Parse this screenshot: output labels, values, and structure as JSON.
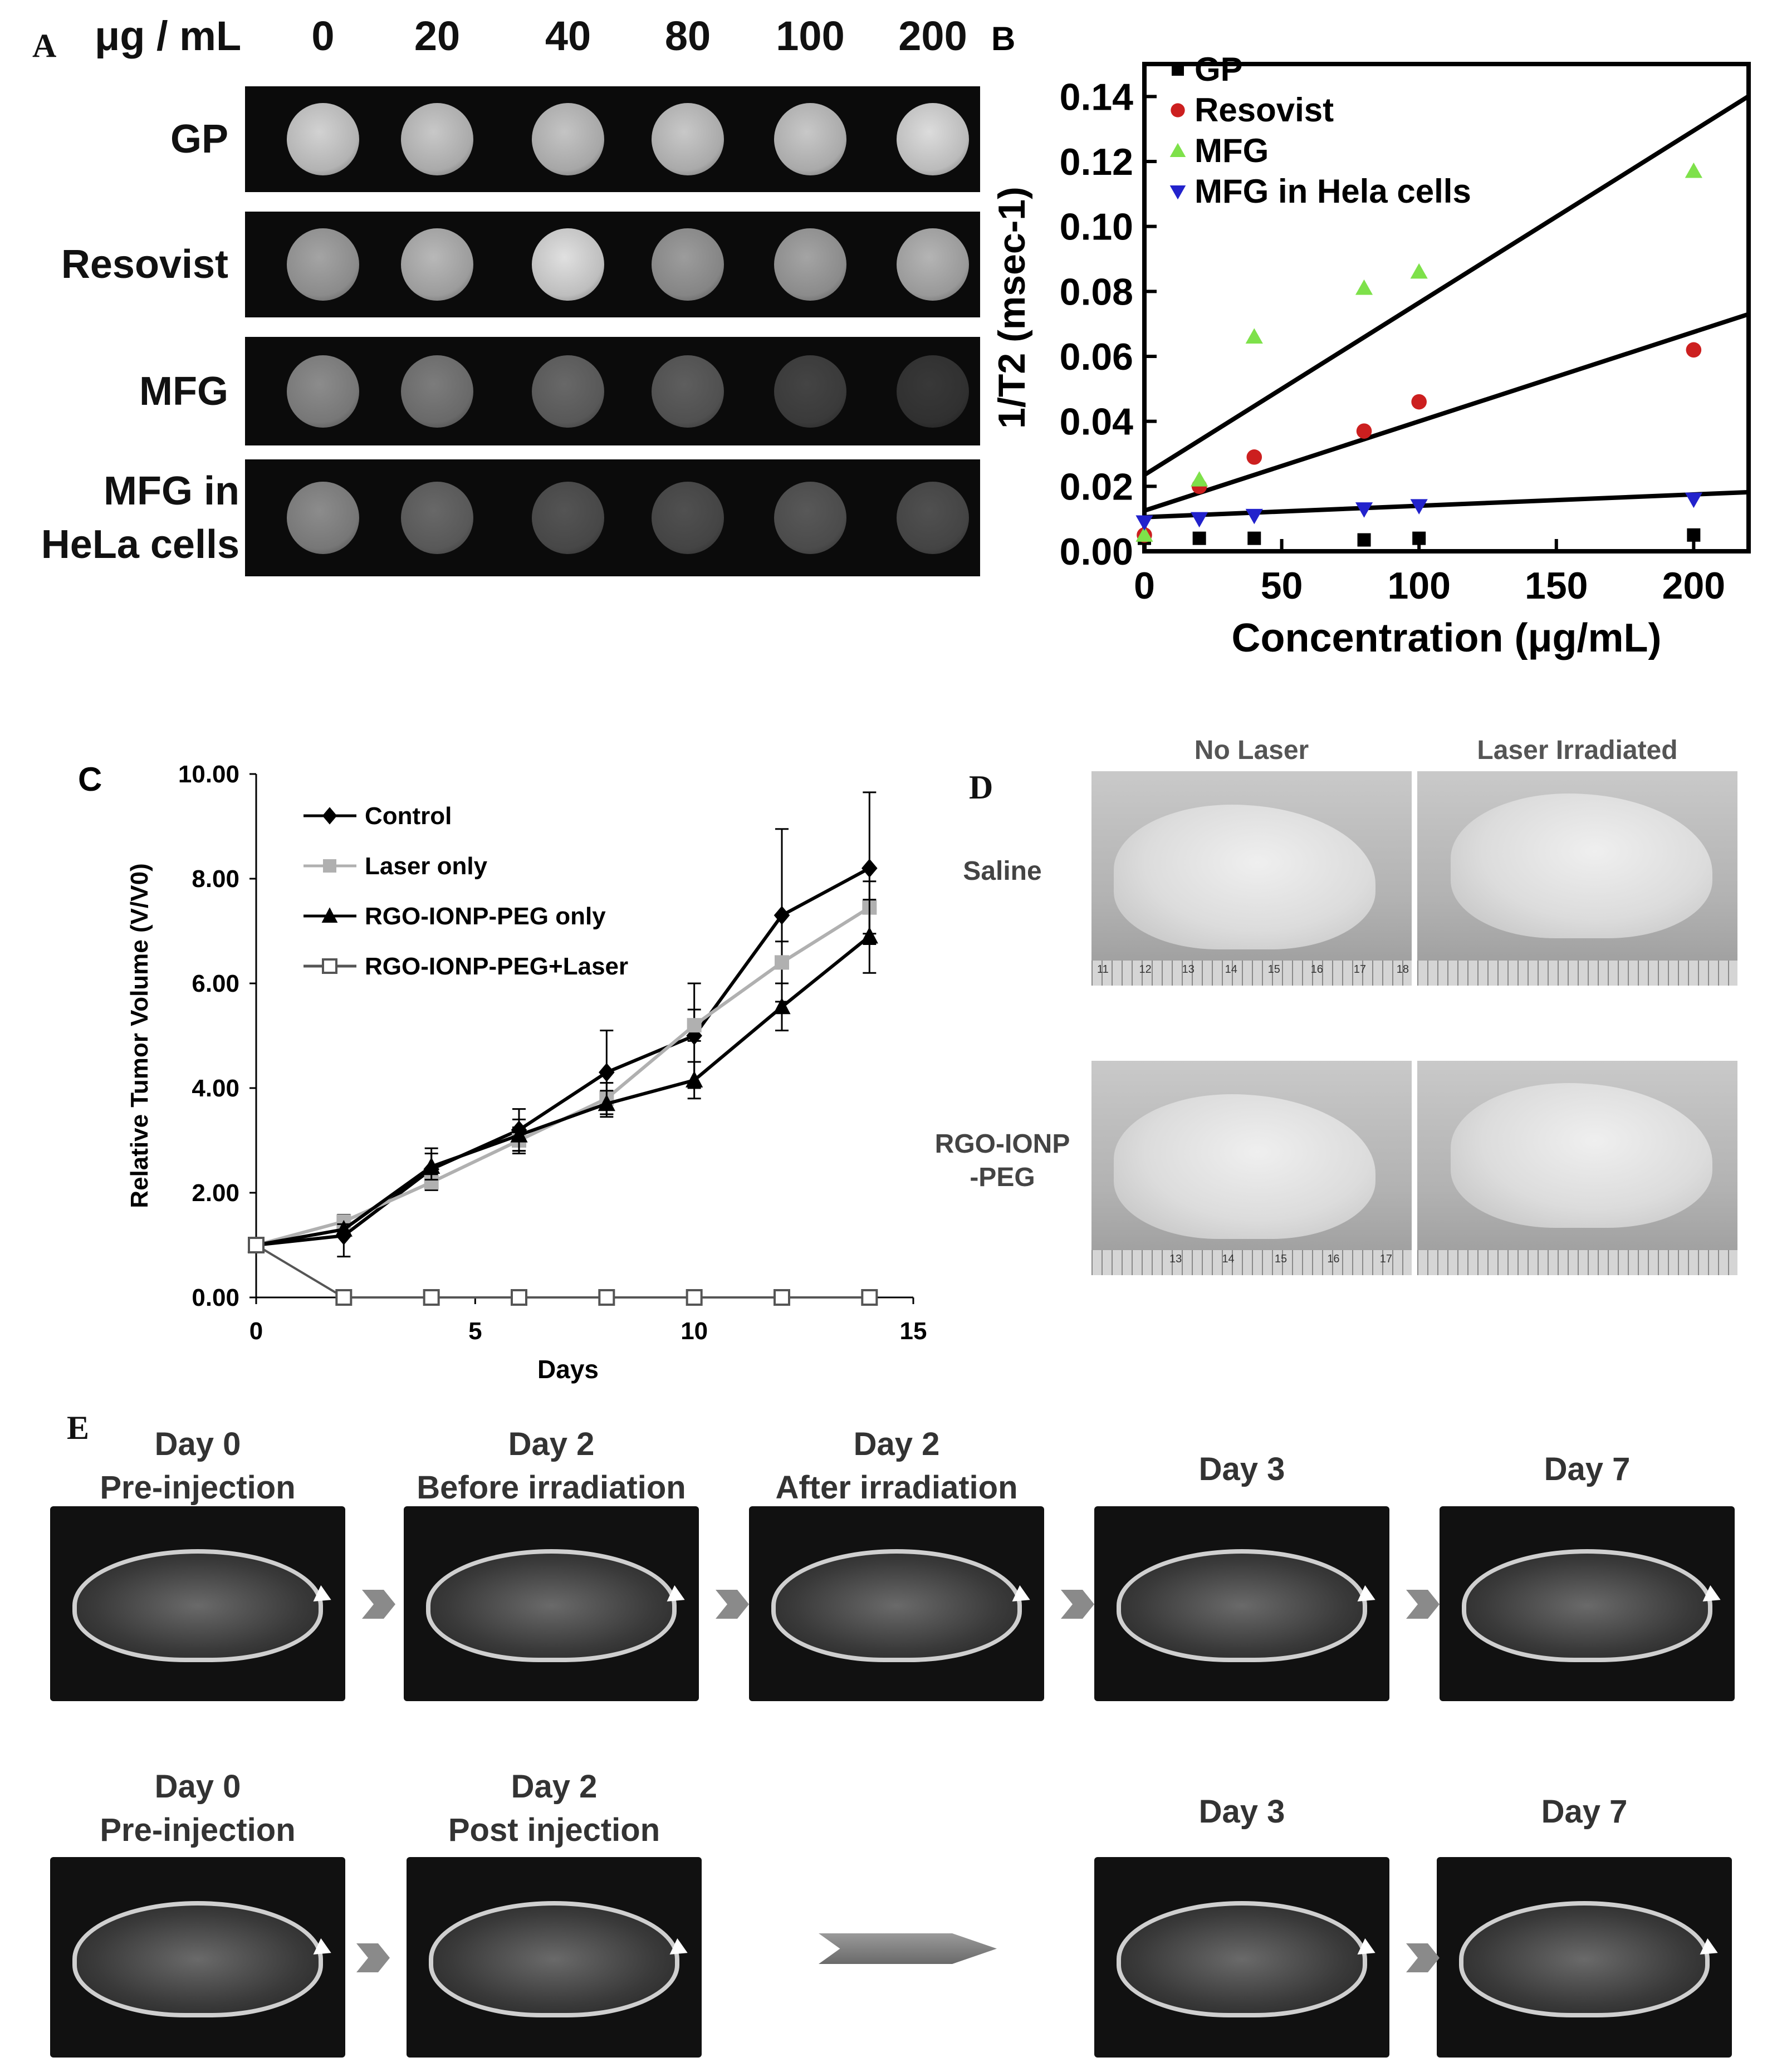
{
  "panel_a": {
    "letter": "A",
    "unit_label": "μg / mL",
    "concentrations": [
      "0",
      "20",
      "40",
      "80",
      "100",
      "200"
    ],
    "rows": [
      {
        "label": "GP",
        "intensities": [
          0.85,
          0.8,
          0.78,
          0.8,
          0.8,
          0.9
        ]
      },
      {
        "label": "Resovist",
        "intensities": [
          0.62,
          0.72,
          0.92,
          0.58,
          0.62,
          0.7
        ]
      },
      {
        "label": "MFG",
        "intensities": [
          0.5,
          0.42,
          0.32,
          0.27,
          0.14,
          0.08
        ]
      },
      {
        "label_lines": [
          "MFG in",
          "HeLa cells"
        ],
        "intensities": [
          0.5,
          0.32,
          0.22,
          0.2,
          0.24,
          0.2
        ]
      }
    ]
  },
  "panel_d": {
    "letter": "D",
    "columns": [
      "No Laser",
      "Laser Irradiated"
    ],
    "rows": [
      {
        "label_lines": [
          "Saline"
        ]
      },
      {
        "label_lines": [
          "RGO-IONP",
          "-PEG"
        ]
      }
    ],
    "ruler_numbers_row1": [
      "11",
      "12",
      "13",
      "14",
      "15",
      "16",
      "17",
      "18"
    ],
    "ruler_numbers_row2": [
      "13",
      "14",
      "15",
      "16",
      "17"
    ]
  },
  "panel_e": {
    "letter": "E",
    "row1": [
      {
        "lines": [
          "Day 0",
          "Pre-injection"
        ]
      },
      {
        "lines": [
          "Day 2",
          "Before irradiation"
        ]
      },
      {
        "lines": [
          "Day 2",
          "After irradiation"
        ]
      },
      {
        "lines": [
          "Day 3"
        ]
      },
      {
        "lines": [
          "Day 7"
        ]
      }
    ],
    "row2": [
      {
        "lines": [
          "Day 0",
          "Pre-injection"
        ]
      },
      {
        "lines": [
          "Day 2",
          "Post injection"
        ]
      },
      {
        "lines": [
          "Day 3"
        ]
      },
      {
        "lines": [
          "Day 7"
        ]
      }
    ]
  },
  "chart_data": [
    {
      "id": "B",
      "panel_letter": "B",
      "type": "scatter",
      "xlabel": "Concentration (μg/mL)",
      "ylabel": "1/T2 (msec-1)",
      "xlim": [
        0,
        220
      ],
      "ylim": [
        0,
        0.15
      ],
      "xticks": [
        0,
        50,
        100,
        150,
        200
      ],
      "yticks": [
        0.0,
        0.02,
        0.04,
        0.06,
        0.08,
        0.1,
        0.12,
        0.14
      ],
      "legend_position": "top-left",
      "series": [
        {
          "name": "GP",
          "marker": "square",
          "color": "#000000",
          "x": [
            0,
            20,
            40,
            80,
            100,
            200
          ],
          "y": [
            0.004,
            0.004,
            0.004,
            0.0035,
            0.004,
            0.005
          ],
          "fit": null
        },
        {
          "name": "Resovist",
          "marker": "circle",
          "color": "#cc1f1f",
          "x": [
            0,
            20,
            40,
            80,
            100,
            200
          ],
          "y": [
            0.005,
            0.02,
            0.029,
            0.037,
            0.046,
            0.062
          ],
          "fit": [
            0.0125,
            0.000275
          ]
        },
        {
          "name": "MFG",
          "marker": "triangle-up",
          "color": "#7ee14a",
          "x": [
            0,
            20,
            40,
            80,
            100,
            200
          ],
          "y": [
            0.005,
            0.022,
            0.066,
            0.081,
            0.086,
            0.117
          ],
          "fit": [
            0.0235,
            0.00053
          ]
        },
        {
          "name": "MFG in Hela cells",
          "marker": "triangle-down",
          "color": "#2222cc",
          "x": [
            0,
            20,
            40,
            80,
            100,
            200
          ],
          "y": [
            0.009,
            0.01,
            0.011,
            0.013,
            0.014,
            0.016
          ],
          "fit": [
            0.0105,
            3.5e-05
          ]
        }
      ]
    },
    {
      "id": "C",
      "panel_letter": "C",
      "type": "line",
      "xlabel": "Days",
      "ylabel": "Relative Tumor Volume (V/V0)",
      "xlim": [
        0,
        15
      ],
      "ylim": [
        0,
        10
      ],
      "xticks": [
        0,
        5,
        10,
        15
      ],
      "yticks": [
        "0.00",
        "2.00",
        "4.00",
        "6.00",
        "8.00",
        "10.00"
      ],
      "legend_position": "top-left",
      "series": [
        {
          "name": "Control",
          "marker": "diamond",
          "color": "#000000",
          "x": [
            0,
            2,
            4,
            6,
            8,
            10,
            12,
            14
          ],
          "y": [
            1.0,
            1.18,
            2.45,
            3.2,
            4.3,
            5.0,
            7.3,
            8.2
          ],
          "err": [
            0,
            0.4,
            0.4,
            0.4,
            0.8,
            1.0,
            1.65,
            1.45
          ]
        },
        {
          "name": "Laser only",
          "marker": "square",
          "color": "#b0b0b0",
          "x": [
            0,
            2,
            4,
            6,
            8,
            10,
            12,
            14
          ],
          "y": [
            1.0,
            1.45,
            2.2,
            3.0,
            3.8,
            5.2,
            6.4,
            7.45
          ],
          "err": [
            0,
            0.1,
            0.15,
            0.25,
            0.3,
            0.3,
            0.4,
            0.5
          ]
        },
        {
          "name": "RGO-IONP-PEG only",
          "marker": "triangle",
          "color": "#000000",
          "x": [
            0,
            2,
            4,
            6,
            8,
            10,
            12,
            14
          ],
          "y": [
            1.0,
            1.3,
            2.5,
            3.1,
            3.7,
            4.15,
            5.55,
            6.9
          ],
          "err": [
            0,
            0.1,
            0.25,
            0.3,
            0.25,
            0.35,
            0.45,
            0.7
          ]
        },
        {
          "name": "RGO-IONP-PEG+Laser",
          "marker": "open-square",
          "color": "#555555",
          "x": [
            0,
            2,
            4,
            6,
            8,
            10,
            12,
            14
          ],
          "y": [
            1.0,
            0,
            0,
            0,
            0,
            0,
            0,
            0
          ],
          "err": [
            0,
            0,
            0,
            0,
            0,
            0,
            0,
            0
          ]
        }
      ]
    }
  ]
}
